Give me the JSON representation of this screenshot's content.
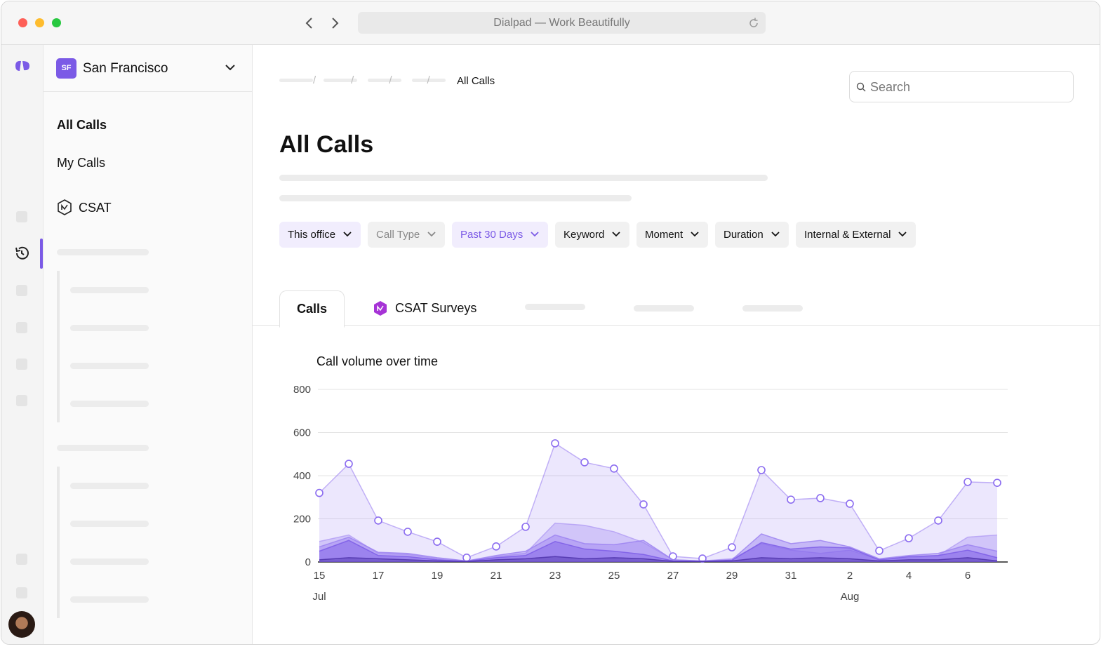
{
  "window": {
    "title": "Dialpad — Work Beautifully"
  },
  "office": {
    "badge": "SF",
    "name": "San Francisco"
  },
  "nav": [
    "All Calls",
    "My Calls",
    "CSAT"
  ],
  "breadcrumb": {
    "current": "All Calls"
  },
  "search": {
    "placeholder": "Search"
  },
  "page": {
    "heading": "All Calls"
  },
  "filters": [
    "This office",
    "Call Type",
    "Past 30 Days",
    "Keyword",
    "Moment",
    "Duration",
    "Internal & External"
  ],
  "tabs": [
    "Calls",
    "CSAT Surveys"
  ],
  "chart_data": {
    "type": "area",
    "title": "Call volume over time",
    "categories": [
      "15",
      null,
      "17",
      null,
      "19",
      null,
      "21",
      null,
      "23",
      null,
      "25",
      null,
      "27",
      null,
      "29",
      null,
      "31",
      null,
      "2",
      null,
      "4",
      null,
      "6",
      null
    ],
    "x_group_labels": [
      {
        "label": "Jul",
        "index": 0
      },
      {
        "label": "Aug",
        "index": 18
      }
    ],
    "ylim": [
      0,
      800
    ],
    "yticks": [
      0,
      200,
      400,
      600,
      800
    ],
    "grid": true,
    "series": [
      {
        "color": "#8b6cf0",
        "markers": true,
        "values": [
          320,
          455,
          192,
          140,
          94,
          20,
          72,
          163,
          550,
          462,
          433,
          267,
          26,
          16,
          68,
          426,
          289,
          296,
          270,
          52,
          110,
          192,
          371,
          367
        ]
      },
      {
        "color": "#b29cf4",
        "markers": false,
        "values": [
          95,
          125,
          40,
          35,
          15,
          5,
          25,
          40,
          180,
          170,
          140,
          90,
          10,
          5,
          15,
          85,
          55,
          40,
          55,
          10,
          20,
          30,
          115,
          125
        ]
      },
      {
        "color": "#9a7ff0",
        "markers": false,
        "values": [
          70,
          115,
          45,
          40,
          20,
          5,
          30,
          50,
          125,
          85,
          80,
          100,
          10,
          5,
          10,
          130,
          85,
          100,
          70,
          15,
          30,
          40,
          80,
          50
        ]
      },
      {
        "color": "#7b5ae6",
        "markers": false,
        "values": [
          50,
          100,
          30,
          25,
          10,
          3,
          20,
          30,
          95,
          60,
          50,
          35,
          5,
          3,
          8,
          90,
          60,
          70,
          65,
          10,
          25,
          30,
          55,
          20
        ]
      },
      {
        "color": "#4b2fa8",
        "markers": false,
        "values": [
          10,
          20,
          15,
          10,
          5,
          2,
          10,
          15,
          25,
          15,
          20,
          15,
          3,
          2,
          5,
          20,
          15,
          20,
          15,
          5,
          10,
          10,
          20,
          5
        ]
      }
    ]
  }
}
